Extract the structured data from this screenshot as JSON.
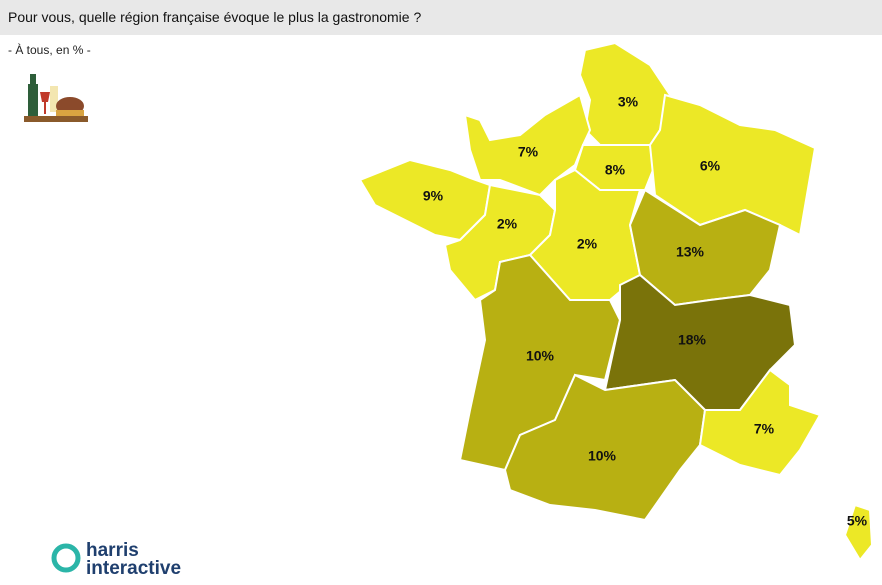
{
  "title": "Pour vous, quelle région française évoque le plus la gastronomie ?",
  "subtitle": "- À tous, en % -",
  "regions": [
    {
      "value": 3,
      "label": "3%",
      "color": "#ece826"
    },
    {
      "value": 7,
      "label": "7%",
      "color": "#ece826"
    },
    {
      "value": 8,
      "label": "8%",
      "color": "#ece826"
    },
    {
      "value": 6,
      "label": "6%",
      "color": "#ece826"
    },
    {
      "value": 9,
      "label": "9%",
      "color": "#ece826"
    },
    {
      "value": 2,
      "label": "2%",
      "color": "#ece826"
    },
    {
      "value": 2,
      "label": "2%",
      "color": "#ece826"
    },
    {
      "value": 13,
      "label": "13%",
      "color": "#b8b012"
    },
    {
      "value": 10,
      "label": "10%",
      "color": "#b8b012"
    },
    {
      "value": 18,
      "label": "18%",
      "color": "#7a730a"
    },
    {
      "value": 10,
      "label": "10%",
      "color": "#b8b012"
    },
    {
      "value": 7,
      "label": "7%",
      "color": "#ece826"
    },
    {
      "value": 5,
      "label": "5%",
      "color": "#ece826"
    }
  ],
  "logo": [
    "harris",
    "interactive"
  ]
}
